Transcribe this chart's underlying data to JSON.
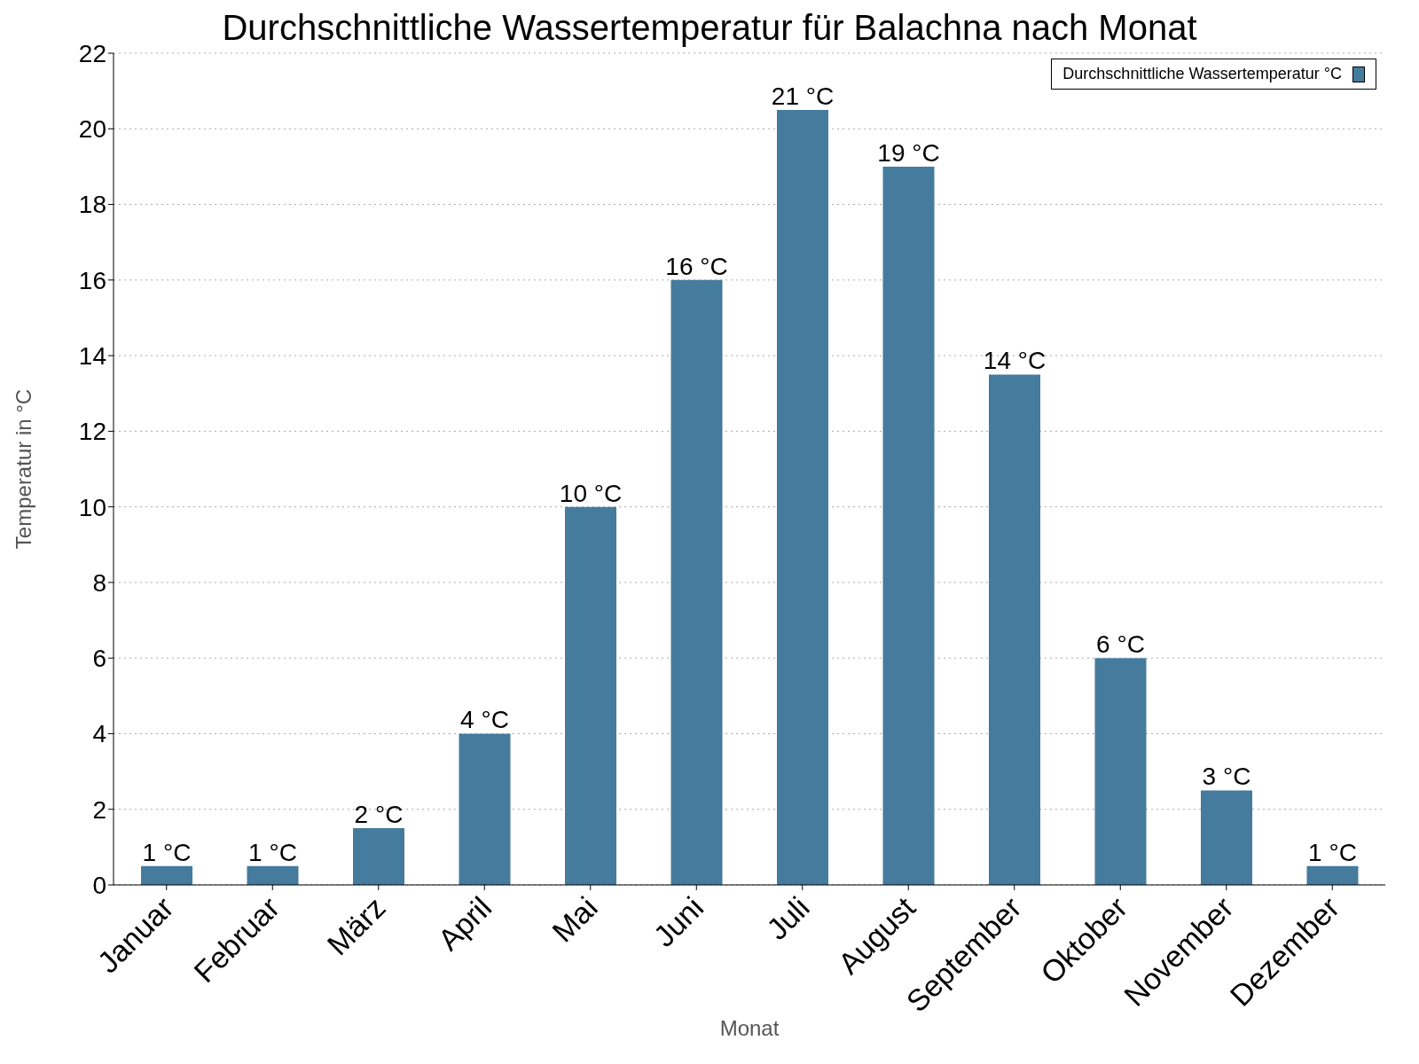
{
  "chart_data": {
    "type": "bar",
    "title": "Durchschnittliche Wassertemperatur für Balachna nach Monat",
    "xlabel": "Monat",
    "ylabel": "Temperatur in °C",
    "categories": [
      "Januar",
      "Februar",
      "März",
      "April",
      "Mai",
      "Juni",
      "Juli",
      "August",
      "September",
      "Oktober",
      "November",
      "Dezember"
    ],
    "series": [
      {
        "name": "Durchschnittliche Wassertemperatur °C",
        "color": "#457b9d",
        "values": [
          0.5,
          0.5,
          1.5,
          4,
          10,
          16,
          20.5,
          19,
          13.5,
          6,
          2.5,
          0.5
        ],
        "value_labels": [
          "1 °C",
          "1 °C",
          "2 °C",
          "4 °C",
          "10 °C",
          "16 °C",
          "21 °C",
          "19 °C",
          "14 °C",
          "6 °C",
          "3 °C",
          "1 °C"
        ]
      }
    ],
    "ylim": [
      0,
      22
    ],
    "yticks": [
      0,
      2,
      4,
      6,
      8,
      10,
      12,
      14,
      16,
      18,
      20,
      22
    ],
    "grid": "y",
    "legend": "top right"
  }
}
